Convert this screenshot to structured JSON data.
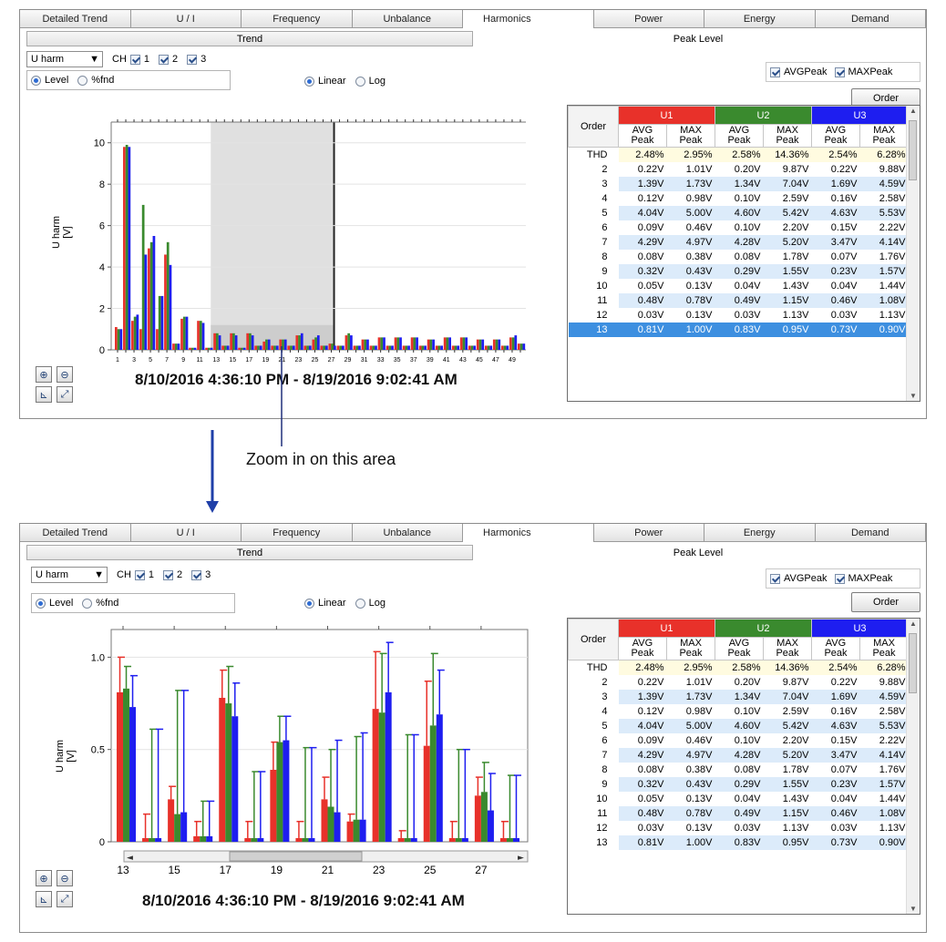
{
  "tabs": [
    "Detailed Trend",
    "U / I",
    "Frequency",
    "Unbalance",
    "Harmonics",
    "Power",
    "Energy",
    "Demand"
  ],
  "active_tab": "Harmonics",
  "subtabs": {
    "trend": "Trend",
    "peak": "Peak Level"
  },
  "controls": {
    "measure_select": "U harm",
    "ch_label": "CH",
    "channels": [
      "1",
      "2",
      "3"
    ],
    "level_label": "Level",
    "fnd_label": "%fnd",
    "linear_label": "Linear",
    "log_label": "Log",
    "avgpeak_label": "AVGPeak",
    "maxpeak_label": "MAXPeak",
    "order_button": "Order"
  },
  "zoom_buttons": [
    "zoom-in",
    "zoom-out",
    "auto-scale",
    "fit-all"
  ],
  "date_range": "8/10/2016 4:36:10 PM - 8/19/2016 9:02:41 AM",
  "annotation": "Zoom in on this area",
  "colors": {
    "u1": "#e8312a",
    "u2": "#3a8a2e",
    "u3": "#1e1ef0",
    "selection": "#3d8fe0",
    "thd_row": "#fffbe0",
    "alt_row": "#dcebfa"
  },
  "table": {
    "order_header": "Order",
    "groups": [
      "U1",
      "U2",
      "U3"
    ],
    "sub_headers": [
      "AVG\nPeak",
      "MAX\nPeak",
      "AVG\nPeak",
      "MAX\nPeak",
      "AVG\nPeak",
      "MAX\nPeak"
    ],
    "rows": [
      [
        "THD",
        "2.48%",
        "2.95%",
        "2.58%",
        "14.36%",
        "2.54%",
        "6.28%"
      ],
      [
        "2",
        "0.22V",
        "1.01V",
        "0.20V",
        "9.87V",
        "0.22V",
        "9.88V"
      ],
      [
        "3",
        "1.39V",
        "1.73V",
        "1.34V",
        "7.04V",
        "1.69V",
        "4.59V"
      ],
      [
        "4",
        "0.12V",
        "0.98V",
        "0.10V",
        "2.59V",
        "0.16V",
        "2.58V"
      ],
      [
        "5",
        "4.04V",
        "5.00V",
        "4.60V",
        "5.42V",
        "4.63V",
        "5.53V"
      ],
      [
        "6",
        "0.09V",
        "0.46V",
        "0.10V",
        "2.20V",
        "0.15V",
        "2.22V"
      ],
      [
        "7",
        "4.29V",
        "4.97V",
        "4.28V",
        "5.20V",
        "3.47V",
        "4.14V"
      ],
      [
        "8",
        "0.08V",
        "0.38V",
        "0.08V",
        "1.78V",
        "0.07V",
        "1.76V"
      ],
      [
        "9",
        "0.32V",
        "0.43V",
        "0.29V",
        "1.55V",
        "0.23V",
        "1.57V"
      ],
      [
        "10",
        "0.05V",
        "0.13V",
        "0.04V",
        "1.43V",
        "0.04V",
        "1.44V"
      ],
      [
        "11",
        "0.48V",
        "0.78V",
        "0.49V",
        "1.15V",
        "0.46V",
        "1.08V"
      ],
      [
        "12",
        "0.03V",
        "0.13V",
        "0.03V",
        "1.13V",
        "0.03V",
        "1.13V"
      ],
      [
        "13",
        "0.81V",
        "1.00V",
        "0.83V",
        "0.95V",
        "0.73V",
        "0.90V"
      ]
    ]
  },
  "chart_data": [
    {
      "type": "bar",
      "ylabel": "U harm\n[V]",
      "ylim": [
        0,
        11
      ],
      "yticks": [
        0,
        2,
        4,
        6,
        8,
        10
      ],
      "x_tick_labels": [
        "1",
        "3",
        "5",
        "7",
        "9",
        "11",
        "13",
        "15",
        "17",
        "19",
        "21",
        "23",
        "25",
        "27",
        "29",
        "31",
        "33",
        "35",
        "37",
        "39",
        "41",
        "43",
        "45",
        "47",
        "49"
      ],
      "x": [
        1,
        2,
        3,
        4,
        5,
        6,
        7,
        8,
        9,
        10,
        11,
        12,
        13,
        14,
        15,
        16,
        17,
        18,
        19,
        20,
        21,
        22,
        23,
        24,
        25,
        26,
        27,
        28,
        29,
        30,
        31,
        32,
        33,
        34,
        35,
        36,
        37,
        38,
        39,
        40,
        41,
        42,
        43,
        44,
        45,
        46,
        47,
        48,
        49,
        50
      ],
      "series": [
        {
          "name": "U1",
          "values": [
            1.1,
            9.8,
            1.4,
            1.0,
            4.9,
            1.0,
            4.6,
            0.3,
            1.5,
            0.1,
            1.4,
            0.1,
            0.8,
            0.2,
            0.8,
            0.1,
            0.8,
            0.2,
            0.4,
            0.2,
            0.5,
            0.2,
            0.7,
            0.2,
            0.5,
            0.2,
            0.3,
            0.2,
            0.7,
            0.2,
            0.5,
            0.2,
            0.6,
            0.2,
            0.6,
            0.2,
            0.6,
            0.2,
            0.5,
            0.2,
            0.6,
            0.2,
            0.6,
            0.2,
            0.5,
            0.2,
            0.5,
            0.2,
            0.6,
            0.3
          ]
        },
        {
          "name": "U2",
          "values": [
            1.0,
            9.9,
            1.6,
            7.0,
            5.2,
            2.6,
            5.2,
            0.3,
            1.6,
            0.1,
            1.4,
            0.1,
            0.8,
            0.2,
            0.8,
            0.1,
            0.8,
            0.2,
            0.5,
            0.2,
            0.5,
            0.2,
            0.7,
            0.2,
            0.6,
            0.2,
            0.3,
            0.2,
            0.8,
            0.2,
            0.5,
            0.2,
            0.6,
            0.2,
            0.6,
            0.2,
            0.6,
            0.2,
            0.5,
            0.2,
            0.6,
            0.2,
            0.6,
            0.2,
            0.5,
            0.2,
            0.5,
            0.2,
            0.6,
            0.3
          ]
        },
        {
          "name": "U3",
          "values": [
            1.0,
            9.8,
            1.7,
            4.6,
            5.5,
            2.6,
            4.1,
            0.3,
            1.6,
            0.1,
            1.3,
            0.1,
            0.7,
            0.2,
            0.7,
            0.1,
            0.7,
            0.2,
            0.5,
            0.2,
            0.5,
            0.2,
            0.8,
            0.2,
            0.7,
            0.2,
            0.2,
            0.2,
            0.7,
            0.2,
            0.5,
            0.2,
            0.6,
            0.2,
            0.6,
            0.2,
            0.6,
            0.2,
            0.5,
            0.2,
            0.6,
            0.2,
            0.6,
            0.2,
            0.5,
            0.2,
            0.5,
            0.2,
            0.7,
            0.3
          ]
        }
      ]
    },
    {
      "type": "bar",
      "ylabel": "U harm\n[V]",
      "ylim": [
        0,
        1.15
      ],
      "yticks": [
        0,
        0.5,
        1.0
      ],
      "ytick_labels": [
        "0",
        "0.5",
        "1.0"
      ],
      "x_tick_labels": [
        "13",
        "15",
        "17",
        "19",
        "21",
        "23",
        "25",
        "27"
      ],
      "x": [
        13,
        14,
        15,
        16,
        17,
        18,
        19,
        20,
        21,
        22,
        23,
        24,
        25,
        26,
        27,
        28
      ],
      "series": [
        {
          "name": "U1",
          "avg": [
            0.81,
            0.02,
            0.23,
            0.03,
            0.78,
            0.02,
            0.39,
            0.02,
            0.23,
            0.11,
            0.72,
            0.02,
            0.52,
            0.02,
            0.25,
            0.02
          ],
          "max": [
            1.0,
            0.15,
            0.3,
            0.11,
            0.93,
            0.11,
            0.54,
            0.11,
            0.35,
            0.15,
            1.03,
            0.06,
            0.87,
            0.11,
            0.35,
            0.11
          ]
        },
        {
          "name": "U2",
          "avg": [
            0.83,
            0.02,
            0.15,
            0.03,
            0.75,
            0.02,
            0.54,
            0.02,
            0.19,
            0.12,
            0.7,
            0.02,
            0.63,
            0.02,
            0.27,
            0.02
          ],
          "max": [
            0.95,
            0.61,
            0.82,
            0.22,
            0.95,
            0.38,
            0.68,
            0.51,
            0.5,
            0.57,
            1.02,
            0.58,
            1.02,
            0.5,
            0.43,
            0.36
          ]
        },
        {
          "name": "U3",
          "avg": [
            0.73,
            0.02,
            0.16,
            0.03,
            0.68,
            0.02,
            0.55,
            0.02,
            0.16,
            0.12,
            0.81,
            0.02,
            0.69,
            0.02,
            0.17,
            0.02
          ],
          "max": [
            0.9,
            0.61,
            0.82,
            0.22,
            0.86,
            0.38,
            0.68,
            0.51,
            0.55,
            0.59,
            1.08,
            0.58,
            0.93,
            0.5,
            0.37,
            0.36
          ]
        }
      ]
    }
  ]
}
